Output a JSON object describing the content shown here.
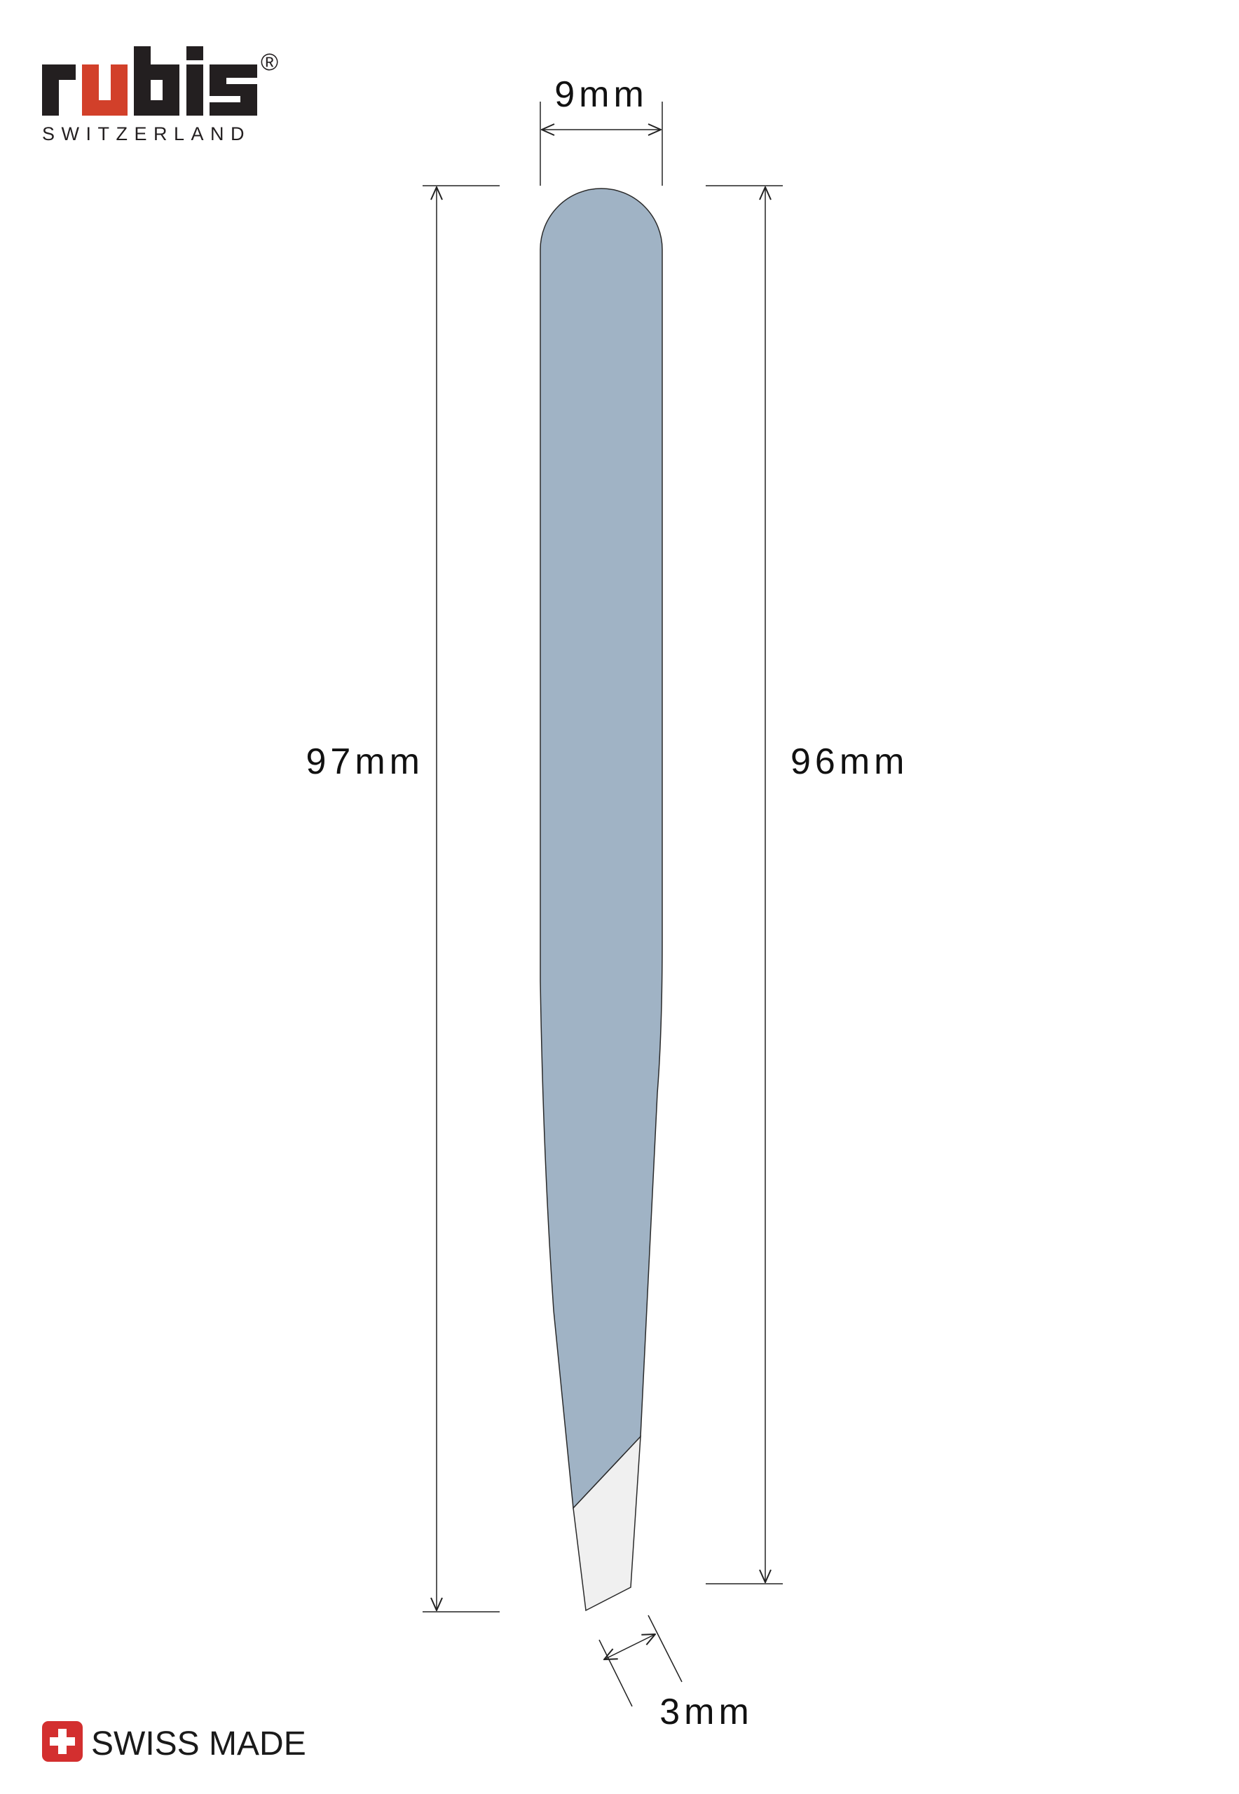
{
  "brand": {
    "name": "rubis",
    "registered_mark": "®",
    "tagline": "SWITZERLAND",
    "color_dark": "#231f20",
    "color_accent": "#d2402a"
  },
  "badge": {
    "label": "SWISS MADE",
    "color": "#d32f2f"
  },
  "tweezer": {
    "body_color": "#a0b3c5",
    "tip_color": "#f0f0f0"
  },
  "dimensions": {
    "width_top": "9mm",
    "length_left": "97mm",
    "length_right": "96mm",
    "tip_width": "3mm"
  }
}
